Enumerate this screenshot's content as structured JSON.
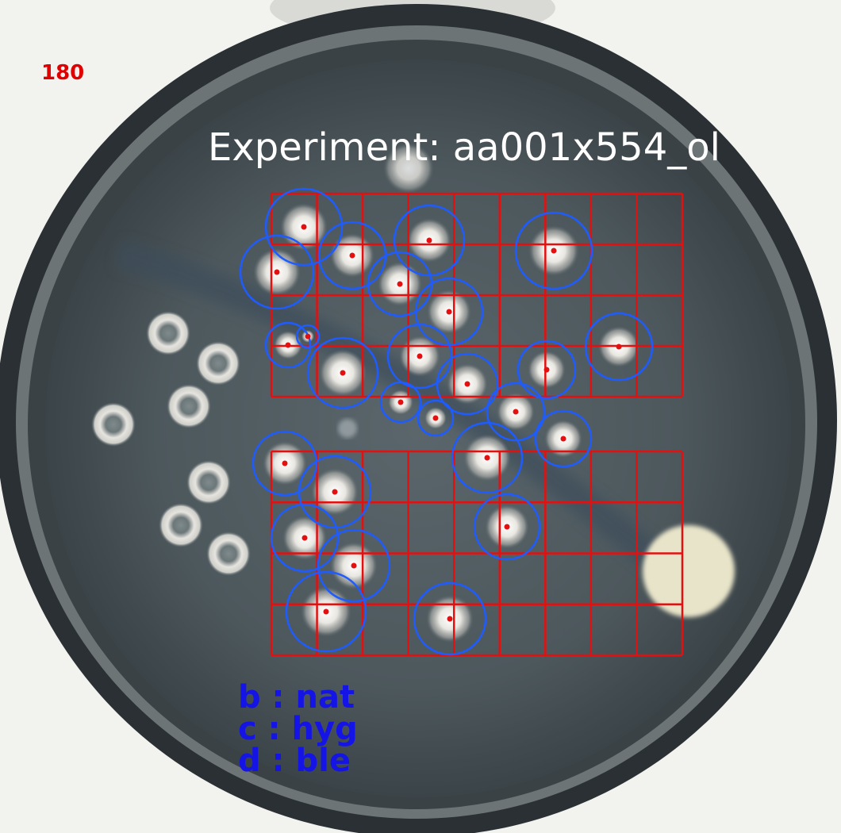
{
  "image": {
    "plate_count": "180",
    "experiment_title": "Experiment: aa001x554_ol",
    "legend": [
      "b : nat",
      "c : hyg",
      "d : ble"
    ]
  },
  "colors": {
    "grid": "#e41010",
    "circle": "#1e5cff",
    "center_dot": "#e41010",
    "count_text": "#e00000",
    "title_text": "#ffffff",
    "legend_text": "#1414e6",
    "agar": "#4c585d",
    "rim": "#2d3438"
  },
  "grids": [
    {
      "name": "upper-grid",
      "rows": 4,
      "cols": 9
    },
    {
      "name": "lower-grid",
      "rows": 4,
      "cols": 9
    }
  ],
  "detections_count": 30
}
